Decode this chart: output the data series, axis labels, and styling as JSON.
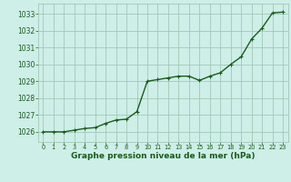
{
  "x": [
    0,
    1,
    2,
    3,
    4,
    5,
    6,
    7,
    8,
    9,
    10,
    11,
    12,
    13,
    14,
    15,
    16,
    17,
    18,
    19,
    20,
    21,
    22,
    23
  ],
  "y": [
    1026.0,
    1026.0,
    1026.0,
    1026.1,
    1026.2,
    1026.25,
    1026.5,
    1026.7,
    1026.75,
    1027.2,
    1029.0,
    1029.1,
    1029.2,
    1029.3,
    1029.3,
    1029.05,
    1029.3,
    1029.5,
    1030.0,
    1030.45,
    1031.5,
    1032.15,
    1033.05,
    1033.1
  ],
  "line_color": "#1a5c1a",
  "marker_color": "#1a5c1a",
  "bg_color": "#ceeee8",
  "grid_color": "#a0c8b8",
  "xlabel_label": "Graphe pression niveau de la mer (hPa)",
  "ylim_min": 1025.4,
  "ylim_max": 1033.6,
  "xlim_min": -0.5,
  "xlim_max": 23.5,
  "yticks": [
    1026,
    1027,
    1028,
    1029,
    1030,
    1031,
    1032,
    1033
  ],
  "xticks": [
    0,
    1,
    2,
    3,
    4,
    5,
    6,
    7,
    8,
    9,
    10,
    11,
    12,
    13,
    14,
    15,
    16,
    17,
    18,
    19,
    20,
    21,
    22,
    23
  ],
  "tick_fontsize": 5.5,
  "xlabel_fontsize": 6.5,
  "linewidth": 1.0,
  "markersize": 3.0
}
